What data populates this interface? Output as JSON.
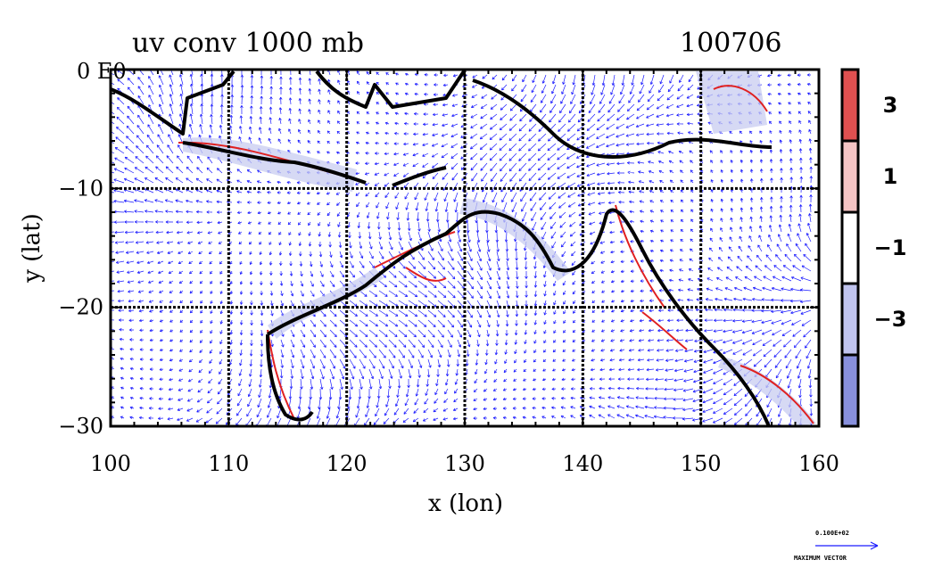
{
  "title_left": "uv conv 1000 mb",
  "title_right": "100706",
  "origin_label": "0 E0",
  "x_axis": {
    "label": "x (lon)",
    "ticks": [
      "100",
      "110",
      "120",
      "130",
      "140",
      "150",
      "160"
    ],
    "values": [
      100,
      110,
      120,
      130,
      140,
      150,
      160
    ],
    "range": [
      100,
      160
    ]
  },
  "y_axis": {
    "label": "y (lat)",
    "ticks": [
      "−10",
      "−20",
      "−30"
    ],
    "values": [
      -10,
      -20,
      -30
    ],
    "range": [
      -30,
      0
    ]
  },
  "colorbar": {
    "ticks": [
      "3",
      "1",
      "−1",
      "−3"
    ],
    "bands": [
      {
        "color": "#e05050"
      },
      {
        "color": "#f4c4c4"
      },
      {
        "color": "#ffffff"
      },
      {
        "color": "#c0c4ee"
      },
      {
        "color": "#8890dd"
      }
    ]
  },
  "reference_vector": {
    "value": "0.100E+02",
    "label": "MAXIMUM VECTOR"
  },
  "colors": {
    "vector": "#1a1aff",
    "positive": "#e02020",
    "negative": "#2020e0",
    "coast": "#000000"
  }
}
